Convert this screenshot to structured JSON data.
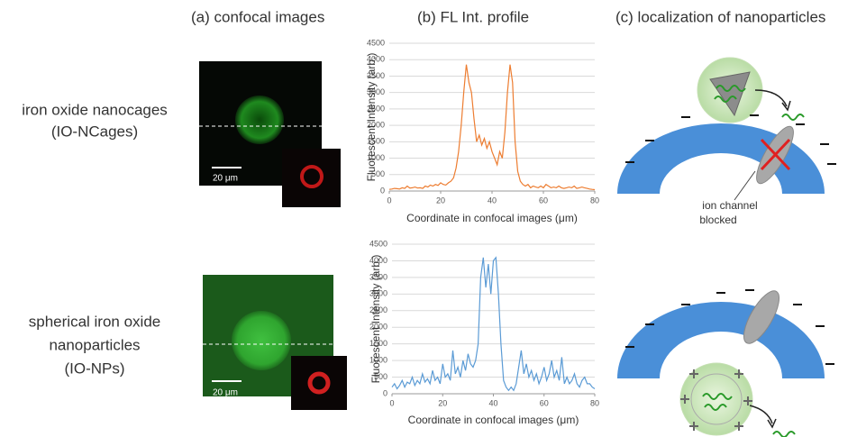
{
  "panel_titles": [
    "(a) confocal images",
    "(b) FL Int. profile",
    "(c) localization of nanoparticles"
  ],
  "rows": [
    {
      "label_lines": [
        "iron oxide nanocages",
        "(IO-NCages)"
      ],
      "scale_bar": "20 μm"
    },
    {
      "label_lines": [
        "spherical iron oxide",
        "nanoparticles",
        "(IO-NPs)"
      ],
      "scale_bar": "20 μm"
    }
  ],
  "diagram": {
    "annotation_lines": [
      "ion channel",
      "blocked"
    ]
  },
  "chart_data": [
    {
      "type": "line",
      "xlabel": "Coordinate in confocal images (μm)",
      "ylabel": "Fluorescent Intensity (arb.)",
      "color": "#ed7d31",
      "grid": true,
      "xlim": [
        0,
        80
      ],
      "xticks": [
        0,
        20,
        40,
        60,
        80
      ],
      "ylim": [
        0,
        4500
      ],
      "yticks": [
        0,
        500,
        1000,
        1500,
        2000,
        2500,
        3000,
        3500,
        4000,
        4500
      ],
      "x": [
        0,
        1,
        2,
        3,
        4,
        5,
        6,
        7,
        8,
        9,
        10,
        11,
        12,
        13,
        14,
        15,
        16,
        17,
        18,
        19,
        20,
        21,
        22,
        23,
        24,
        25,
        26,
        27,
        28,
        29,
        30,
        31,
        32,
        33,
        34,
        35,
        36,
        37,
        38,
        39,
        40,
        41,
        42,
        43,
        44,
        45,
        46,
        47,
        48,
        49,
        50,
        51,
        52,
        53,
        54,
        55,
        56,
        57,
        58,
        59,
        60,
        61,
        62,
        63,
        64,
        65,
        66,
        67,
        68,
        69,
        70,
        71,
        72,
        73,
        74,
        75,
        76,
        77,
        78,
        79,
        80
      ],
      "values": [
        50,
        60,
        80,
        70,
        60,
        100,
        80,
        150,
        90,
        100,
        120,
        90,
        100,
        80,
        150,
        120,
        180,
        150,
        200,
        170,
        250,
        200,
        180,
        250,
        300,
        400,
        700,
        1200,
        2000,
        3000,
        3850,
        3300,
        3000,
        2200,
        1500,
        1700,
        1400,
        1600,
        1300,
        1500,
        1200,
        1000,
        800,
        1200,
        1000,
        1800,
        3000,
        3850,
        3300,
        1500,
        600,
        300,
        200,
        150,
        200,
        100,
        150,
        120,
        100,
        150,
        100,
        200,
        150,
        100,
        120,
        100,
        150,
        100,
        80,
        100,
        120,
        100,
        150,
        80,
        100,
        120,
        100,
        80,
        60,
        50,
        40
      ]
    },
    {
      "type": "line",
      "xlabel": "Coordinate in confocal images (μm)",
      "ylabel": "Fluorescent Intensity (arb.)",
      "color": "#5b9bd5",
      "grid": true,
      "xlim": [
        0,
        80
      ],
      "xticks": [
        0,
        20,
        40,
        60,
        80
      ],
      "ylim": [
        0,
        4500
      ],
      "yticks": [
        0,
        500,
        1000,
        1500,
        2000,
        2500,
        3000,
        3500,
        4000,
        4500
      ],
      "x": [
        0,
        1,
        2,
        3,
        4,
        5,
        6,
        7,
        8,
        9,
        10,
        11,
        12,
        13,
        14,
        15,
        16,
        17,
        18,
        19,
        20,
        21,
        22,
        23,
        24,
        25,
        26,
        27,
        28,
        29,
        30,
        31,
        32,
        33,
        34,
        35,
        36,
        37,
        38,
        39,
        40,
        41,
        42,
        43,
        44,
        45,
        46,
        47,
        48,
        49,
        50,
        51,
        52,
        53,
        54,
        55,
        56,
        57,
        58,
        59,
        60,
        61,
        62,
        63,
        64,
        65,
        66,
        67,
        68,
        69,
        70,
        71,
        72,
        73,
        74,
        75,
        76,
        77,
        78,
        79,
        80
      ],
      "values": [
        200,
        300,
        150,
        250,
        400,
        200,
        350,
        300,
        500,
        250,
        400,
        300,
        600,
        350,
        450,
        300,
        700,
        400,
        500,
        300,
        900,
        500,
        600,
        400,
        1300,
        600,
        800,
        500,
        1000,
        700,
        1200,
        900,
        800,
        1000,
        1500,
        3500,
        4100,
        3200,
        3900,
        3000,
        4000,
        4100,
        3000,
        1500,
        400,
        200,
        100,
        200,
        100,
        300,
        800,
        1300,
        600,
        900,
        500,
        700,
        400,
        600,
        300,
        500,
        800,
        400,
        600,
        1000,
        500,
        700,
        400,
        1100,
        300,
        500,
        300,
        400,
        600,
        300,
        200,
        400,
        500,
        300,
        300,
        200,
        150
      ]
    }
  ]
}
